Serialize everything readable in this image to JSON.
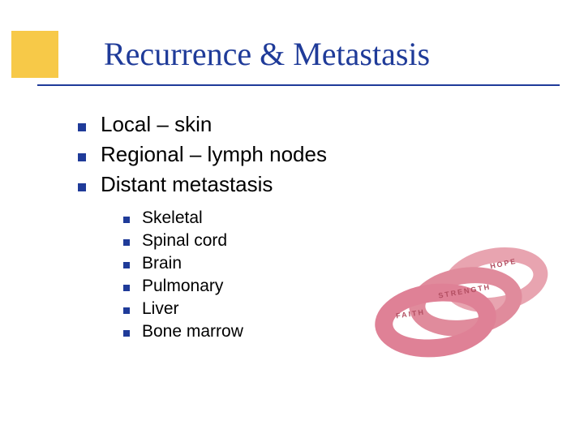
{
  "title": "Recurrence & Metastasis",
  "colors": {
    "accent_box": "#f7c948",
    "title_text": "#1f3b99",
    "title_underline": "#1f3b99",
    "bullet": "#1f3b99",
    "body_text": "#000000",
    "background": "#ffffff",
    "band_back": "#e59aa7",
    "band_mid": "#e08b9c",
    "band_front": "#df8196",
    "band_label": "#b34f62"
  },
  "typography": {
    "title_font": "Georgia serif",
    "title_size_pt": 30,
    "body_font": "Verdana sans-serif",
    "level1_size_pt": 20,
    "level2_size_pt": 16
  },
  "bullets_level1": [
    {
      "text": "Local – skin"
    },
    {
      "text": "Regional – lymph nodes"
    },
    {
      "text": "Distant metastasis"
    }
  ],
  "bullets_level2": [
    {
      "text": "Skeletal"
    },
    {
      "text": "Spinal cord"
    },
    {
      "text": "Brain"
    },
    {
      "text": "Pulmonary"
    },
    {
      "text": "Liver"
    },
    {
      "text": "Bone marrow"
    }
  ],
  "wristband_labels": {
    "back": "HOPE",
    "mid": "STRENGTH",
    "front": "FAITH"
  },
  "image_description": "stack of three pink awareness wristbands"
}
